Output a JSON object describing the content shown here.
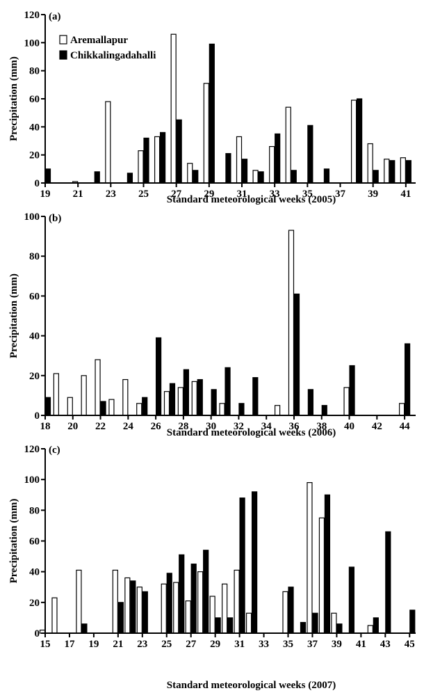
{
  "chart_data": [
    {
      "type": "bar",
      "panel_label": "(a)",
      "xlabel": "Standard meteorological weeks (2005)",
      "ylabel": "Precipitation (mm)",
      "ylim": [
        0,
        120
      ],
      "yticks": [
        0,
        20,
        40,
        60,
        80,
        100,
        120
      ],
      "xlim": [
        19,
        41.6
      ],
      "xticks": [
        19,
        21,
        23,
        25,
        27,
        29,
        31,
        33,
        35,
        37,
        39,
        41
      ],
      "legend_position": "top-left",
      "series": [
        {
          "name": "Aremallapur",
          "fill": "#ffffff",
          "points": [
            [
              21,
              1
            ],
            [
              23,
              58
            ],
            [
              25,
              23
            ],
            [
              26,
              33
            ],
            [
              27,
              106
            ],
            [
              28,
              14
            ],
            [
              29,
              71
            ],
            [
              31,
              33
            ],
            [
              32,
              9
            ],
            [
              33,
              26
            ],
            [
              34,
              54
            ],
            [
              38,
              59
            ],
            [
              39,
              28
            ],
            [
              40,
              17
            ],
            [
              41,
              18
            ]
          ]
        },
        {
          "name": "Chikkalingadahalli",
          "fill": "#000000",
          "points": [
            [
              19,
              10
            ],
            [
              22,
              8
            ],
            [
              24,
              7
            ],
            [
              25,
              32
            ],
            [
              26,
              36
            ],
            [
              27,
              45
            ],
            [
              28,
              9
            ],
            [
              29,
              99
            ],
            [
              30,
              21
            ],
            [
              31,
              17
            ],
            [
              32,
              8
            ],
            [
              33,
              35
            ],
            [
              34,
              9
            ],
            [
              35,
              41
            ],
            [
              36,
              10
            ],
            [
              38,
              60
            ],
            [
              39,
              9
            ],
            [
              40,
              16
            ],
            [
              41,
              16
            ]
          ]
        }
      ]
    },
    {
      "type": "bar",
      "panel_label": "(b)",
      "xlabel": "Standard meteorological weeks (2006)",
      "ylabel": "Precipitation (mm)",
      "ylim": [
        0,
        100
      ],
      "yticks": [
        0,
        20,
        40,
        60,
        80,
        100
      ],
      "xlim": [
        18,
        44.8
      ],
      "xticks": [
        18,
        20,
        22,
        24,
        26,
        28,
        30,
        32,
        34,
        36,
        38,
        40,
        42,
        44
      ],
      "series": [
        {
          "name": "Aremallapur",
          "fill": "#ffffff",
          "points": [
            [
              19,
              21
            ],
            [
              20,
              9
            ],
            [
              21,
              20
            ],
            [
              22,
              28
            ],
            [
              23,
              8
            ],
            [
              24,
              18
            ],
            [
              25,
              6
            ],
            [
              27,
              12
            ],
            [
              28,
              14
            ],
            [
              29,
              17
            ],
            [
              31,
              6
            ],
            [
              35,
              5
            ],
            [
              36,
              93
            ],
            [
              40,
              14
            ],
            [
              44,
              6
            ]
          ]
        },
        {
          "name": "Chikkalingadahalli",
          "fill": "#000000",
          "points": [
            [
              18,
              9
            ],
            [
              22,
              7
            ],
            [
              25,
              9
            ],
            [
              26,
              39
            ],
            [
              27,
              16
            ],
            [
              28,
              23
            ],
            [
              29,
              18
            ],
            [
              30,
              13
            ],
            [
              31,
              24
            ],
            [
              32,
              6
            ],
            [
              33,
              19
            ],
            [
              36,
              61
            ],
            [
              37,
              13
            ],
            [
              38,
              5
            ],
            [
              40,
              25
            ],
            [
              44,
              36
            ]
          ]
        }
      ]
    },
    {
      "type": "bar",
      "panel_label": "(c)",
      "xlabel": "Standard meteorological weeks (2007)",
      "ylabel": "Precipitation (mm)",
      "ylim": [
        0,
        120
      ],
      "yticks": [
        0,
        20,
        40,
        60,
        80,
        100,
        120
      ],
      "xlim": [
        15,
        45.5
      ],
      "xticks": [
        15,
        17,
        19,
        21,
        23,
        25,
        27,
        29,
        31,
        33,
        35,
        37,
        39,
        41,
        43,
        45
      ],
      "series": [
        {
          "name": "Aremallapur",
          "fill": "#ffffff",
          "points": [
            [
              15,
              2
            ],
            [
              16,
              23
            ],
            [
              18,
              41
            ],
            [
              21,
              41
            ],
            [
              22,
              36
            ],
            [
              23,
              30
            ],
            [
              25,
              32
            ],
            [
              26,
              33
            ],
            [
              27,
              21
            ],
            [
              28,
              40
            ],
            [
              29,
              24
            ],
            [
              30,
              32
            ],
            [
              31,
              41
            ],
            [
              32,
              13
            ],
            [
              35,
              27
            ],
            [
              37,
              98
            ],
            [
              38,
              75
            ],
            [
              39,
              13
            ],
            [
              42,
              5
            ]
          ]
        },
        {
          "name": "Chikkalingadahalli",
          "fill": "#000000",
          "points": [
            [
              18,
              6
            ],
            [
              21,
              20
            ],
            [
              22,
              34
            ],
            [
              23,
              27
            ],
            [
              25,
              39
            ],
            [
              26,
              51
            ],
            [
              27,
              45
            ],
            [
              28,
              54
            ],
            [
              29,
              10
            ],
            [
              30,
              10
            ],
            [
              31,
              88
            ],
            [
              32,
              92
            ],
            [
              35,
              30
            ],
            [
              36,
              7
            ],
            [
              37,
              13
            ],
            [
              38,
              90
            ],
            [
              39,
              6
            ],
            [
              40,
              43
            ],
            [
              42,
              10
            ],
            [
              43,
              66
            ],
            [
              45,
              15
            ]
          ]
        }
      ]
    }
  ]
}
